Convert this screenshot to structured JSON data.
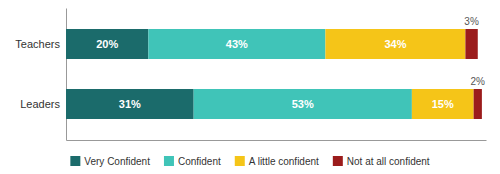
{
  "chart_data": {
    "type": "bar",
    "orientation": "horizontal",
    "stacked": true,
    "data_labels": true,
    "tick_labels": "y",
    "legend": "bottom",
    "categories": [
      "Teachers",
      "Leaders"
    ],
    "xlim": [
      0,
      102
    ],
    "series": [
      {
        "name": "Very Confident",
        "color": "#1b6b6b",
        "values": [
          20,
          31
        ],
        "value_labels": [
          "20%",
          "31%"
        ]
      },
      {
        "name": "Confident",
        "color": "#40c4b8",
        "values": [
          43,
          53
        ],
        "value_labels": [
          "43%",
          "53%"
        ]
      },
      {
        "name": "A little confident",
        "color": "#f5c518",
        "values": [
          34,
          15
        ],
        "value_labels": [
          "34%",
          "15%"
        ]
      },
      {
        "name": "Not at all confident",
        "color": "#9b1c1c",
        "values": [
          3,
          2
        ],
        "value_labels": [
          "3%",
          "2%"
        ]
      }
    ]
  }
}
